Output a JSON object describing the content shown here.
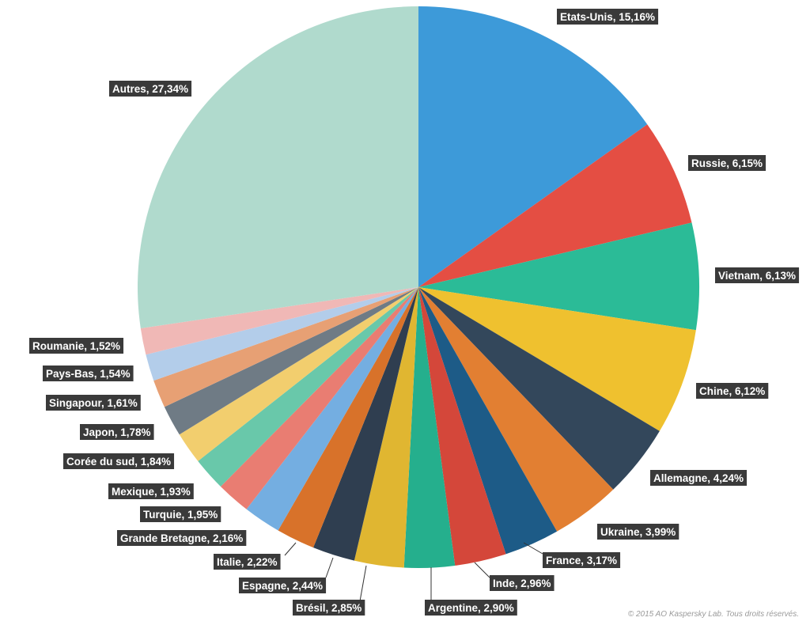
{
  "chart_data": {
    "type": "pie",
    "start": "top, clockwise",
    "slices": [
      {
        "label": "Etats-Unis, 15,16%",
        "value": 15.16,
        "color": "#3d9ad9"
      },
      {
        "label": "Russie, 6,15%",
        "value": 6.15,
        "color": "#e44e43"
      },
      {
        "label": "Vietnam, 6,13%",
        "value": 6.13,
        "color": "#2bbb97"
      },
      {
        "label": "Chine, 6,12%",
        "value": 6.12,
        "color": "#efc12f"
      },
      {
        "label": "Allemagne, 4,24%",
        "value": 4.24,
        "color": "#33475b"
      },
      {
        "label": "Ukraine, 3,99%",
        "value": 3.99,
        "color": "#e27f32"
      },
      {
        "label": "France, 3,17%",
        "value": 3.17,
        "color": "#1d5b87"
      },
      {
        "label": "Inde, 2,96%",
        "value": 2.96,
        "color": "#d4473a"
      },
      {
        "label": "Argentine, 2,90%",
        "value": 2.9,
        "color": "#25af8d"
      },
      {
        "label": "Brésil, 2,85%",
        "value": 2.85,
        "color": "#e0b631"
      },
      {
        "label": "Espagne, 2,44%",
        "value": 2.44,
        "color": "#2f3e50"
      },
      {
        "label": "Italie, 2,22%",
        "value": 2.22,
        "color": "#d8722a"
      },
      {
        "label": "Grande Bretagne, 2,16%",
        "value": 2.16,
        "color": "#74aee1"
      },
      {
        "label": "Turquie,  1,95%",
        "value": 1.95,
        "color": "#e97d72"
      },
      {
        "label": "Mexique, 1,93%",
        "value": 1.93,
        "color": "#69c8aa"
      },
      {
        "label": "Corée du sud, 1,84%",
        "value": 1.84,
        "color": "#f2ce6e"
      },
      {
        "label": "Japon, 1,78%",
        "value": 1.78,
        "color": "#6f7b85"
      },
      {
        "label": "Singapour, 1,61%",
        "value": 1.61,
        "color": "#e7a074"
      },
      {
        "label": "Pays-Bas, 1,54%",
        "value": 1.54,
        "color": "#b3cdea"
      },
      {
        "label": "Roumanie, 1,52%",
        "value": 1.52,
        "color": "#f0b8b6"
      },
      {
        "label": "Autres, 27,34%",
        "value": 27.34,
        "color": "#b0dacd"
      }
    ]
  },
  "footer": {
    "copyright": "© 2015 AO Kaspersky Lab. Tous droits réservés."
  }
}
